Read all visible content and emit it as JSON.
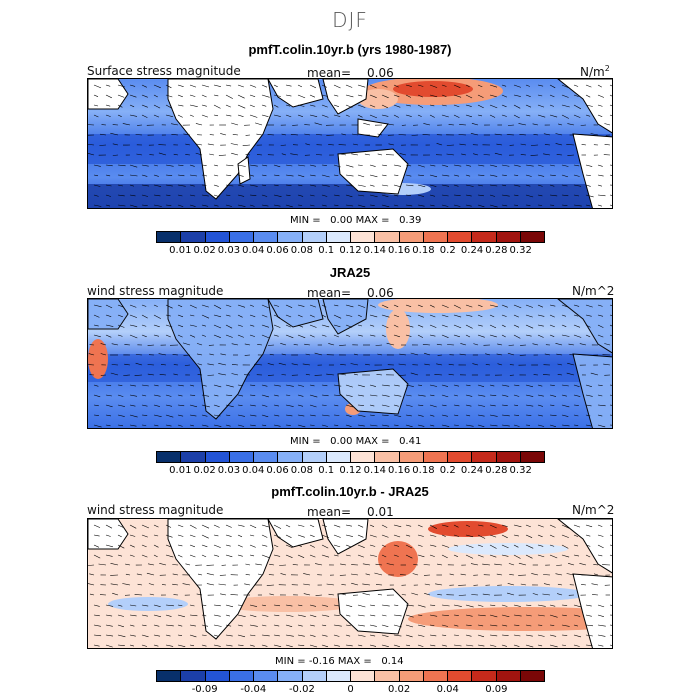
{
  "suptitle": "DJF",
  "panels": [
    {
      "title": "pmfT.colin.10yr.b (yrs 1980-1987)",
      "left_label": "Surface stress magnitude",
      "mean_label": "mean=",
      "mean_value": "0.06",
      "units_main": "N/m",
      "units_sup": "2",
      "min_label": "MIN =",
      "min_value": "0.00",
      "max_label": "MAX =",
      "max_value": "0.39",
      "colorbar": {
        "colors": [
          "#08306b",
          "#1c3fa8",
          "#2354d6",
          "#3a6fe6",
          "#5a8cf0",
          "#86b0f7",
          "#b3cffa",
          "#dbe9fd",
          "#fde3d6",
          "#f9c0a5",
          "#f59c78",
          "#ef7451",
          "#e24b2f",
          "#c52a1b",
          "#a1140f",
          "#7a0707"
        ],
        "ticks": [
          "0.01",
          "0.02",
          "0.03",
          "0.04",
          "0.06",
          "0.08",
          "0.1",
          "0.12",
          "0.14",
          "0.16",
          "0.18",
          "0.2",
          "0.24",
          "0.28",
          "0.32"
        ]
      }
    },
    {
      "title": "JRA25",
      "left_label": "wind stress magnitude",
      "mean_label": "mean=",
      "mean_value": "0.06",
      "units_main": "N/m^2",
      "units_sup": "",
      "min_label": "MIN =",
      "min_value": "0.00",
      "max_label": "MAX =",
      "max_value": "0.41",
      "colorbar": {
        "colors": [
          "#08306b",
          "#1c3fa8",
          "#2354d6",
          "#3a6fe6",
          "#5a8cf0",
          "#86b0f7",
          "#b3cffa",
          "#dbe9fd",
          "#fde3d6",
          "#f9c0a5",
          "#f59c78",
          "#ef7451",
          "#e24b2f",
          "#c52a1b",
          "#a1140f",
          "#7a0707"
        ],
        "ticks": [
          "0.01",
          "0.02",
          "0.03",
          "0.04",
          "0.06",
          "0.08",
          "0.1",
          "0.12",
          "0.14",
          "0.16",
          "0.18",
          "0.2",
          "0.24",
          "0.28",
          "0.32"
        ]
      }
    },
    {
      "title": "pmfT.colin.10yr.b - JRA25",
      "left_label": "wind stress magnitude",
      "mean_label": "mean=",
      "mean_value": "0.01",
      "units_main": "N/m^2",
      "units_sup": "",
      "min_label": "MIN =",
      "min_value": "-0.16",
      "max_label": "MAX =",
      "max_value": "0.14",
      "colorbar": {
        "colors": [
          "#08306b",
          "#1c3fa8",
          "#2354d6",
          "#3a6fe6",
          "#5a8cf0",
          "#86b0f7",
          "#b3cffa",
          "#dbe9fd",
          "#fde3d6",
          "#f9c0a5",
          "#f59c78",
          "#ef7451",
          "#e24b2f",
          "#c52a1b",
          "#a1140f",
          "#7a0707"
        ],
        "ticks": [
          "-0.09",
          "-0.04",
          "-0.02",
          "0",
          "0.02",
          "0.04",
          "0.09"
        ],
        "tick_boundaries": [
          2,
          4,
          6,
          8,
          10,
          12,
          14
        ]
      }
    }
  ]
}
